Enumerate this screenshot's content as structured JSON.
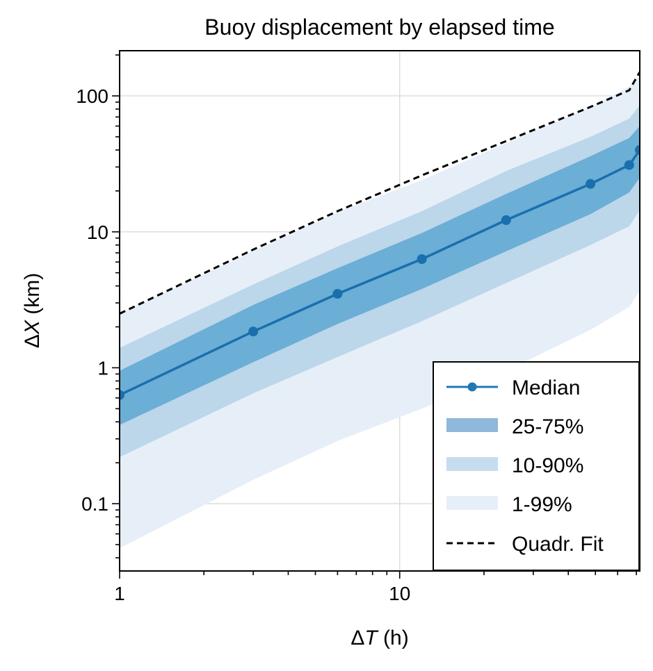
{
  "chart_data": {
    "type": "line",
    "title": "Buoy displacement by elapsed time",
    "xlabel": {
      "prefix": "Δ",
      "var": "T",
      "unit": " (h)"
    },
    "ylabel": {
      "prefix": "Δ",
      "var": "X",
      "unit": " (km)"
    },
    "xscale": "log",
    "yscale": "log",
    "xlim": [
      1,
      72
    ],
    "ylim": [
      0.032,
      215
    ],
    "xticks": [
      {
        "value": 1,
        "label": "1"
      },
      {
        "value": 10,
        "label": "10"
      }
    ],
    "yticks": [
      {
        "value": 0.1,
        "label": "0.1"
      },
      {
        "value": 1,
        "label": "1"
      },
      {
        "value": 10,
        "label": "10"
      },
      {
        "value": 100,
        "label": "100"
      }
    ],
    "grid": true,
    "legend_position": "bottom-right",
    "colors": {
      "median": "#1f77b4",
      "band_25_75": "#6baed6",
      "band_10_90": "#bcd6ea",
      "band_1_99": "#e6eff8",
      "fit": "#000000"
    },
    "x": [
      1,
      3,
      6,
      12,
      24,
      48,
      66,
      72
    ],
    "series": [
      {
        "name": "Median",
        "kind": "line-markers",
        "values": [
          0.63,
          1.85,
          3.5,
          6.3,
          12.2,
          22.5,
          31,
          40
        ]
      },
      {
        "name": "25-75%",
        "kind": "band",
        "lower": [
          0.38,
          1.1,
          2.1,
          3.8,
          7.2,
          13.5,
          19.5,
          25
        ],
        "upper": [
          0.95,
          2.9,
          5.4,
          9.8,
          19,
          36,
          49,
          60
        ]
      },
      {
        "name": "10-90%",
        "kind": "band",
        "lower": [
          0.22,
          0.65,
          1.2,
          2.2,
          4.2,
          8,
          11,
          14.5
        ],
        "upper": [
          1.4,
          4.1,
          7.8,
          14.2,
          28,
          50,
          68,
          85
        ]
      },
      {
        "name": "1-99%",
        "kind": "band",
        "lower": [
          0.047,
          0.15,
          0.29,
          0.5,
          0.95,
          1.9,
          2.8,
          3.7
        ],
        "upper": [
          2.5,
          7.2,
          14,
          24,
          45,
          83,
          117,
          140
        ]
      },
      {
        "name": "Quadr. Fit",
        "kind": "dashed-line",
        "values": [
          2.5,
          7.4,
          14.2,
          26,
          46.5,
          83,
          110,
          150
        ]
      }
    ],
    "legend": [
      "Median",
      "25-75%",
      "10-90%",
      "1-99%",
      "Quadr. Fit"
    ]
  }
}
